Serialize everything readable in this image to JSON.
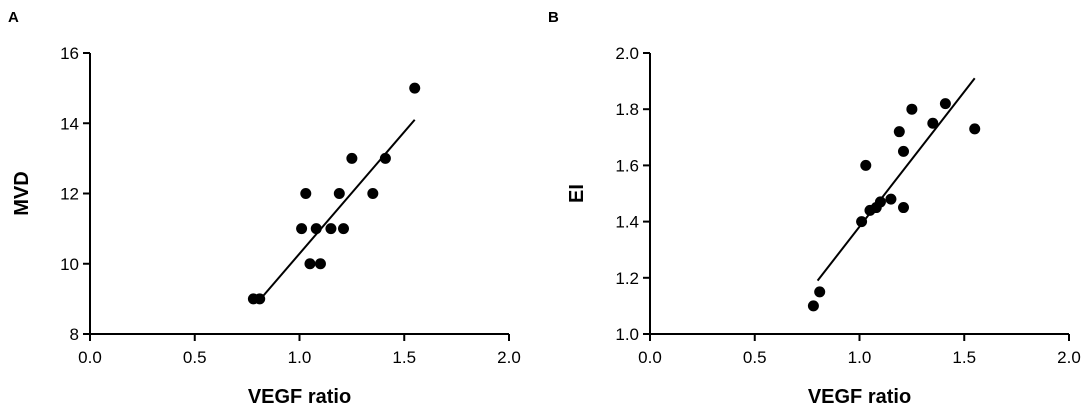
{
  "chart_data": [
    {
      "type": "scatter",
      "panel": "A",
      "xlabel": "VEGF ratio",
      "ylabel": "MVD",
      "xlim": [
        0,
        2.0
      ],
      "ylim": [
        8,
        16
      ],
      "xticks": [
        "0.0",
        "0.5",
        "1.0",
        "1.5",
        "2.0"
      ],
      "yticks": [
        "8",
        "10",
        "12",
        "14",
        "16"
      ],
      "grid": false,
      "legend": "none",
      "points": [
        {
          "x": 0.78,
          "y": 9
        },
        {
          "x": 0.81,
          "y": 9
        },
        {
          "x": 1.01,
          "y": 11
        },
        {
          "x": 1.03,
          "y": 12
        },
        {
          "x": 1.05,
          "y": 10
        },
        {
          "x": 1.08,
          "y": 11
        },
        {
          "x": 1.1,
          "y": 10
        },
        {
          "x": 1.15,
          "y": 11
        },
        {
          "x": 1.19,
          "y": 12
        },
        {
          "x": 1.21,
          "y": 11
        },
        {
          "x": 1.25,
          "y": 13
        },
        {
          "x": 1.35,
          "y": 12
        },
        {
          "x": 1.41,
          "y": 13
        },
        {
          "x": 1.55,
          "y": 15
        }
      ],
      "fit_line": [
        {
          "x": 0.8,
          "y": 8.9
        },
        {
          "x": 1.55,
          "y": 14.1
        }
      ]
    },
    {
      "type": "scatter",
      "panel": "B",
      "xlabel": "VEGF ratio",
      "ylabel": "EI",
      "xlim": [
        0,
        2.0
      ],
      "ylim": [
        1.0,
        2.0
      ],
      "xticks": [
        "0.0",
        "0.5",
        "1.0",
        "1.5",
        "2.0"
      ],
      "yticks": [
        "1.0",
        "1.2",
        "1.4",
        "1.6",
        "1.8",
        "2.0"
      ],
      "grid": false,
      "legend": "none",
      "points": [
        {
          "x": 0.78,
          "y": 1.1
        },
        {
          "x": 0.81,
          "y": 1.15
        },
        {
          "x": 1.01,
          "y": 1.4
        },
        {
          "x": 1.03,
          "y": 1.6
        },
        {
          "x": 1.05,
          "y": 1.44
        },
        {
          "x": 1.08,
          "y": 1.45
        },
        {
          "x": 1.1,
          "y": 1.47
        },
        {
          "x": 1.15,
          "y": 1.48
        },
        {
          "x": 1.19,
          "y": 1.72
        },
        {
          "x": 1.21,
          "y": 1.45
        },
        {
          "x": 1.21,
          "y": 1.65
        },
        {
          "x": 1.25,
          "y": 1.8
        },
        {
          "x": 1.35,
          "y": 1.75
        },
        {
          "x": 1.41,
          "y": 1.82
        },
        {
          "x": 1.55,
          "y": 1.73
        }
      ],
      "fit_line": [
        {
          "x": 0.8,
          "y": 1.19
        },
        {
          "x": 1.55,
          "y": 1.91
        }
      ]
    }
  ]
}
